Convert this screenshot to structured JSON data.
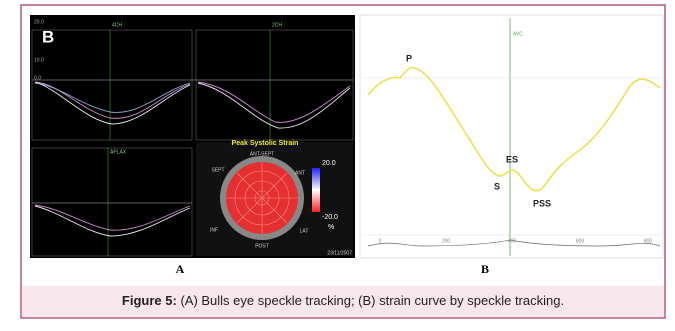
{
  "figure": {
    "panel_a": {
      "label": "B",
      "view_labels": [
        "4CH",
        "2CH",
        "APLAX"
      ],
      "axis_labels": [
        "20.0",
        "10.0",
        "0.0"
      ],
      "bullseye": {
        "title": "Peak Systolic Strain",
        "scale_max": "20.0",
        "scale_min": "-20.0",
        "unit": "%",
        "segments": [
          "ANT-SEPT",
          "ANT",
          "SEPT",
          "INF",
          "LAT",
          "POST"
        ],
        "date": "23/11/2007"
      }
    },
    "panel_b": {
      "marker": "AVC",
      "points": [
        "P",
        "ES",
        "S",
        "PSS"
      ],
      "x_labels": [
        "0",
        "200",
        "400",
        "600",
        "800"
      ]
    },
    "sublabels": [
      "A",
      "B"
    ],
    "caption": {
      "label": "Figure 5:",
      "text": "(A) Bulls eye speckle tracking; (B) strain curve by speckle tracking."
    }
  }
}
